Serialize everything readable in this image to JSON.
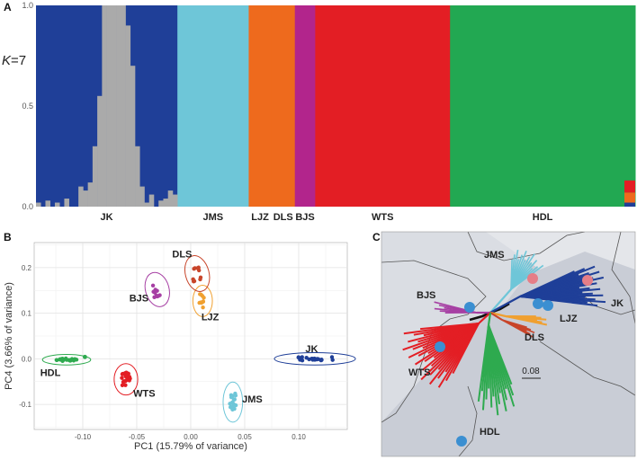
{
  "panels": {
    "a": {
      "letter": "A"
    },
    "b": {
      "letter": "B"
    },
    "c": {
      "letter": "C"
    }
  },
  "colors": {
    "JK": "#1f3f98",
    "JMS": "#6ec6d8",
    "LJZ": "#f0a030",
    "DLS": "#c8452a",
    "BJS": "#a63fa3",
    "WTS": "#e31e24",
    "HDL": "#2eaa4f",
    "LJZDLS_bar": "#ee6a1d",
    "BJS_bar": "#b2258c",
    "HDL_bar": "#22a852",
    "admix_grey": "#aaaaaa",
    "map_grey": "#c9cdd6",
    "branch_center": "#111111"
  },
  "chart_data": [
    {
      "type": "bar",
      "panel": "A",
      "title": "K=7",
      "title_prefix": "K",
      "title_suffix": "=7",
      "ylabel": "",
      "ylim": [
        0,
        1
      ],
      "ytick_labels": [
        "0.0",
        "0.5",
        "1.0"
      ],
      "yticks": [
        0,
        0.5,
        1
      ],
      "groups": [
        {
          "label": "JK",
          "start": 0,
          "end": 0.236
        },
        {
          "label": "JMS",
          "start": 0.236,
          "end": 0.355
        },
        {
          "label": "LJZ",
          "start": 0.355,
          "end": 0.393
        },
        {
          "label": "DLS",
          "start": 0.393,
          "end": 0.432
        },
        {
          "label": "BJS",
          "start": 0.432,
          "end": 0.466
        },
        {
          "label": "WTS",
          "start": 0.466,
          "end": 0.691
        },
        {
          "label": "HDL",
          "start": 0.691,
          "end": 1.0
        }
      ],
      "admixture_grey_in_JK": [
        0.02,
        0.0,
        0.03,
        0.0,
        0.02,
        0.0,
        0.04,
        0.0,
        0.0,
        0.1,
        0.08,
        0.12,
        0.3,
        0.55,
        1.0,
        1.0,
        1.0,
        1.0,
        1.0,
        0.9,
        0.7,
        0.3,
        0.1,
        0.02,
        0.06,
        0.0,
        0.03,
        0.04,
        0.08,
        0.06
      ],
      "hdl_admixture_tail": {
        "red": 0.06,
        "orange": 0.05,
        "blue": 0.02
      }
    },
    {
      "type": "scatter",
      "panel": "B",
      "xlabel": "PC1 (15.79% of variance)",
      "ylabel": "PC4 (3.66% of variance)",
      "xlim": [
        -0.145,
        0.145
      ],
      "ylim": [
        -0.155,
        0.255
      ],
      "xticks": [
        -0.1,
        -0.05,
        0.0,
        0.05,
        0.1
      ],
      "xtick_labels": [
        "-0.10",
        "-0.05",
        "0.00",
        "0.05",
        "0.10"
      ],
      "yticks": [
        -0.1,
        0.0,
        0.1,
        0.2
      ],
      "ytick_labels": [
        "-0.1",
        "0.0",
        "0.1",
        "0.2"
      ],
      "grid": true,
      "series": [
        {
          "name": "JK",
          "cx": 0.115,
          "cy": 0.0,
          "sx": 0.018,
          "sy": 0.004,
          "n": 22,
          "label_x": 0.112,
          "label_y": 0.022
        },
        {
          "name": "JMS",
          "cx": 0.039,
          "cy": -0.095,
          "sx": 0.003,
          "sy": 0.02,
          "n": 18,
          "label_x": 0.057,
          "label_y": -0.088
        },
        {
          "name": "LJZ",
          "cx": 0.011,
          "cy": 0.127,
          "sx": 0.003,
          "sy": 0.015,
          "n": 10,
          "label_x": 0.018,
          "label_y": 0.092
        },
        {
          "name": "DLS",
          "cx": 0.006,
          "cy": 0.187,
          "sx": 0.004,
          "sy": 0.018,
          "n": 10,
          "label_x": -0.008,
          "label_y": 0.23
        },
        {
          "name": "BJS",
          "cx": -0.031,
          "cy": 0.152,
          "sx": 0.004,
          "sy": 0.017,
          "n": 10,
          "label_x": -0.048,
          "label_y": 0.134
        },
        {
          "name": "WTS",
          "cx": -0.06,
          "cy": -0.045,
          "sx": 0.004,
          "sy": 0.015,
          "n": 22,
          "label_x": -0.043,
          "label_y": -0.075
        },
        {
          "name": "HDL",
          "cx": -0.115,
          "cy": -0.002,
          "sx": 0.01,
          "sy": 0.003,
          "n": 18,
          "label_x": -0.13,
          "label_y": -0.03
        }
      ]
    }
  ],
  "tree": {
    "scale_label": "0.08",
    "labels": [
      "JMS",
      "JK",
      "BJS",
      "LJZ",
      "DLS",
      "WTS",
      "HDL"
    ]
  }
}
